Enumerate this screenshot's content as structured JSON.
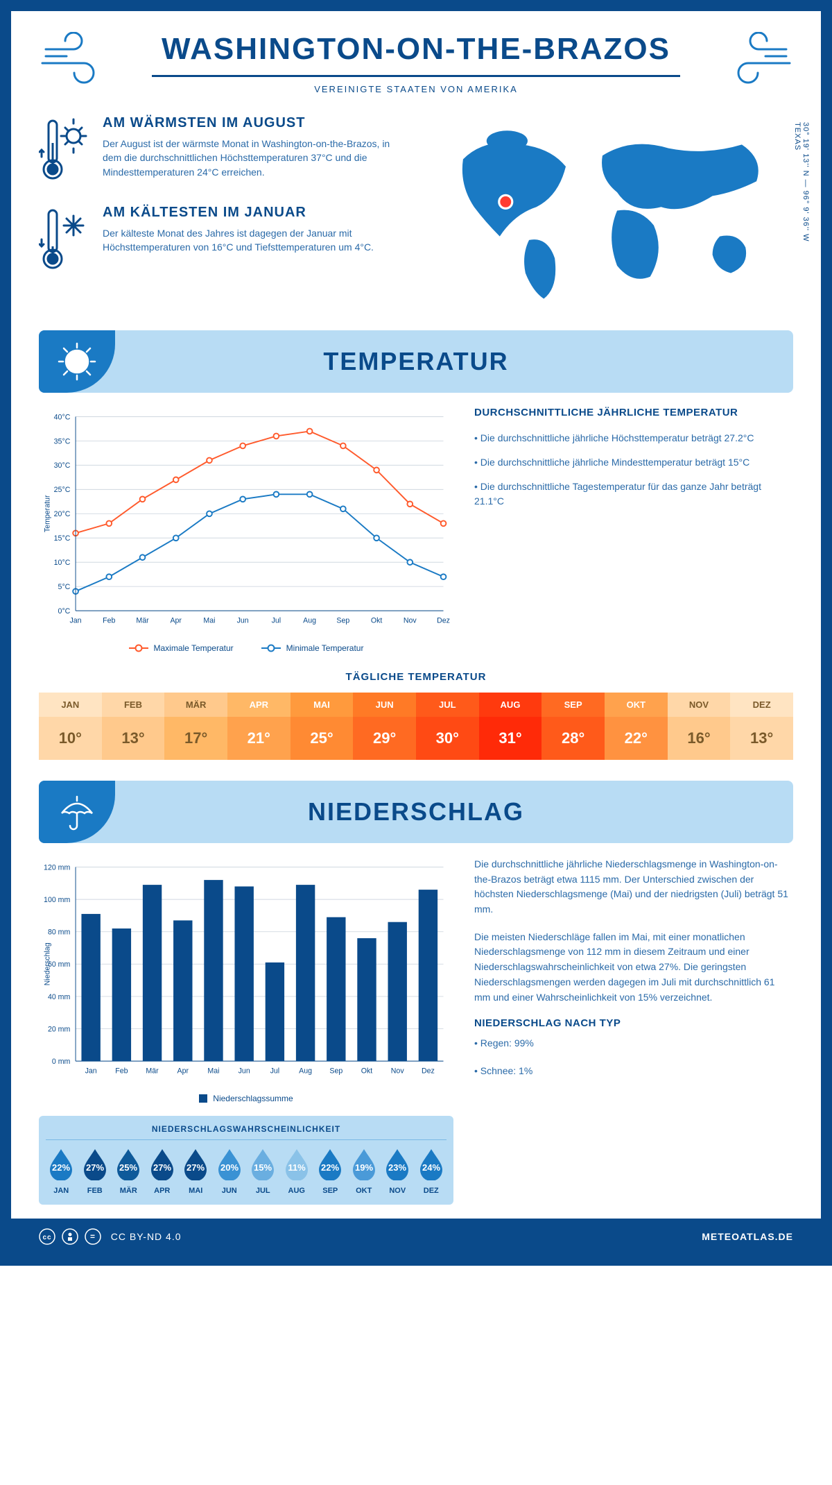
{
  "header": {
    "title": "WASHINGTON-ON-THE-BRAZOS",
    "subtitle": "VEREINIGTE STAATEN VON AMERIKA"
  },
  "location": {
    "coords": "30° 19' 13'' N — 96° 9' 36'' W",
    "region": "TEXAS",
    "marker_color": "#ff3b2f"
  },
  "warmest": {
    "heading": "AM WÄRMSTEN IM AUGUST",
    "text": "Der August ist der wärmste Monat in Washington-on-the-Brazos, in dem die durchschnittlichen Höchsttemperaturen 37°C und die Mindesttemperaturen 24°C erreichen."
  },
  "coldest": {
    "heading": "AM KÄLTESTEN IM JANUAR",
    "text": "Der kälteste Monat des Jahres ist dagegen der Januar mit Höchsttemperaturen von 16°C und Tiefsttemperaturen um 4°C."
  },
  "temperature_section": {
    "title": "TEMPERATUR",
    "chart": {
      "type": "line",
      "months": [
        "Jan",
        "Feb",
        "Mär",
        "Apr",
        "Mai",
        "Jun",
        "Jul",
        "Aug",
        "Sep",
        "Okt",
        "Nov",
        "Dez"
      ],
      "max_series": {
        "label": "Maximale Temperatur",
        "color": "#ff5a2c",
        "values": [
          16,
          18,
          23,
          27,
          31,
          34,
          36,
          37,
          34,
          29,
          22,
          18
        ]
      },
      "min_series": {
        "label": "Minimale Temperatur",
        "color": "#1a7ac4",
        "values": [
          4,
          7,
          11,
          15,
          20,
          23,
          24,
          24,
          21,
          15,
          10,
          7
        ]
      },
      "ylim": [
        0,
        40
      ],
      "ytick_step": 5,
      "ylabel": "Temperatur",
      "y_suffix": "°C",
      "grid_color": "#d8e0e8",
      "background": "#ffffff"
    },
    "stats": {
      "heading": "DURCHSCHNITTLICHE JÄHRLICHE TEMPERATUR",
      "bullets": [
        "• Die durchschnittliche jährliche Höchsttemperatur beträgt 27.2°C",
        "• Die durchschnittliche jährliche Mindesttemperatur beträgt 15°C",
        "• Die durchschnittliche Tagestemperatur für das ganze Jahr beträgt 21.1°C"
      ]
    },
    "daily": {
      "heading": "TÄGLICHE TEMPERATUR",
      "months": [
        "JAN",
        "FEB",
        "MÄR",
        "APR",
        "MAI",
        "JUN",
        "JUL",
        "AUG",
        "SEP",
        "OKT",
        "NOV",
        "DEZ"
      ],
      "values": [
        "10°",
        "13°",
        "17°",
        "21°",
        "25°",
        "29°",
        "30°",
        "31°",
        "28°",
        "22°",
        "16°",
        "13°"
      ],
      "header_colors": [
        "#ffe4c2",
        "#ffd7a8",
        "#ffc98c",
        "#ffb866",
        "#ff9a3d",
        "#ff7a26",
        "#ff5a1a",
        "#ff3a0e",
        "#ff6a22",
        "#ffa24d",
        "#ffd7a8",
        "#ffe4c2"
      ],
      "value_colors": [
        "#ffd7a8",
        "#ffc98c",
        "#ffb866",
        "#ffa24d",
        "#ff8a33",
        "#ff6a22",
        "#ff4a14",
        "#ff2a08",
        "#ff5a1a",
        "#ff9240",
        "#ffc98c",
        "#ffd7a8"
      ],
      "text_color_light": "#ffffff",
      "text_color_dark": "#7a5a2a"
    }
  },
  "precipitation_section": {
    "title": "NIEDERSCHLAG",
    "chart": {
      "type": "bar",
      "months": [
        "Jan",
        "Feb",
        "Mär",
        "Apr",
        "Mai",
        "Jun",
        "Jul",
        "Aug",
        "Sep",
        "Okt",
        "Nov",
        "Dez"
      ],
      "values": [
        91,
        82,
        109,
        87,
        112,
        108,
        61,
        109,
        89,
        76,
        86,
        106
      ],
      "bar_color": "#0a4a8a",
      "ylim": [
        0,
        120
      ],
      "ytick_step": 20,
      "ylabel": "Niederschlag",
      "y_suffix": " mm",
      "legend": "Niederschlagssumme",
      "grid_color": "#d8e0e8"
    },
    "text1": "Die durchschnittliche jährliche Niederschlagsmenge in Washington-on-the-Brazos beträgt etwa 1115 mm. Der Unterschied zwischen der höchsten Niederschlagsmenge (Mai) und der niedrigsten (Juli) beträgt 51 mm.",
    "text2": "Die meisten Niederschläge fallen im Mai, mit einer monatlichen Niederschlagsmenge von 112 mm in diesem Zeitraum und einer Niederschlagswahrscheinlichkeit von etwa 27%. Die geringsten Niederschlagsmengen werden dagegen im Juli mit durchschnittlich 61 mm und einer Wahrscheinlichkeit von 15% verzeichnet.",
    "by_type": {
      "heading": "NIEDERSCHLAG NACH TYP",
      "bullets": [
        "• Regen: 99%",
        "• Schnee: 1%"
      ]
    },
    "probability": {
      "heading": "NIEDERSCHLAGSWAHRSCHEINLICHKEIT",
      "months": [
        "JAN",
        "FEB",
        "MÄR",
        "APR",
        "MAI",
        "JUN",
        "JUL",
        "AUG",
        "SEP",
        "OKT",
        "NOV",
        "DEZ"
      ],
      "percents": [
        "22%",
        "27%",
        "25%",
        "27%",
        "27%",
        "20%",
        "15%",
        "11%",
        "22%",
        "19%",
        "23%",
        "24%"
      ],
      "drop_colors": [
        "#1a7ac4",
        "#0a4a8a",
        "#0e5a9a",
        "#0a4a8a",
        "#0a4a8a",
        "#3a92d4",
        "#6aaee0",
        "#8ac2e8",
        "#1a7ac4",
        "#4a9ad8",
        "#1a7ac4",
        "#1a7ac4"
      ]
    }
  },
  "footer": {
    "license": "CC BY-ND 4.0",
    "brand": "METEOATLAS.DE"
  },
  "colors": {
    "primary": "#0a4a8a",
    "accent": "#1a7ac4",
    "light_blue": "#b8dcf4"
  }
}
